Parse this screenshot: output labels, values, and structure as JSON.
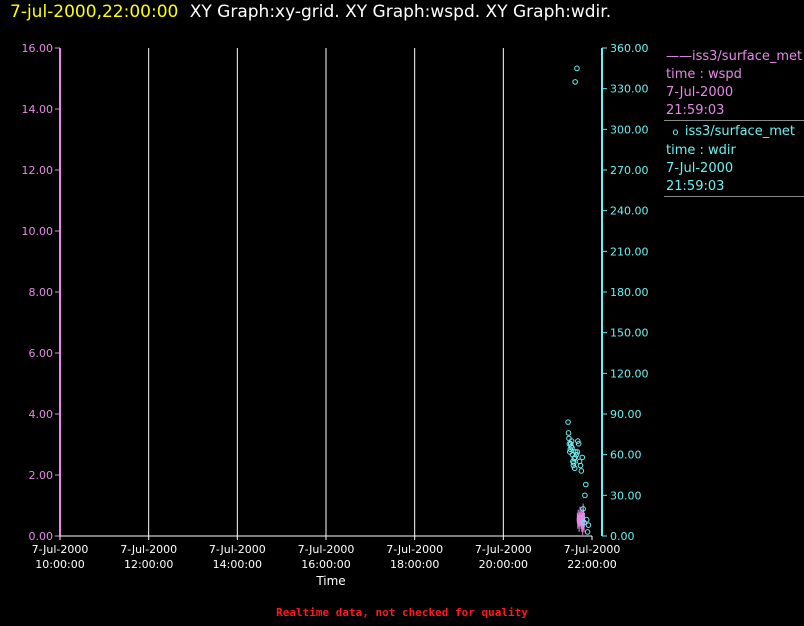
{
  "title": {
    "timestamp": "7-jul-2000,22:00:00",
    "graphs": "XY Graph:xy-grid.  XY Graph:wspd.  XY Graph:wdir."
  },
  "legend": [
    {
      "label": "iss3/surface_met",
      "var": "time : wspd",
      "date": "7-Jul-2000",
      "time": "21:59:03",
      "marker": "line"
    },
    {
      "label": "iss3/surface_met",
      "var": "time : wdir",
      "date": "7-Jul-2000",
      "time": "21:59:03",
      "marker": "circle"
    }
  ],
  "footer": "Realtime data, not checked for quality",
  "colors": {
    "wspd": "#e68ae6",
    "wdir": "#6cf0f0",
    "grid": "#ffffff",
    "timestamp": "#ffff00",
    "footer": "#ff1a1a"
  },
  "chart_data": {
    "type": "scatter",
    "xlabel": "Time",
    "x_ticks": [
      {
        "date": "7-Jul-2000",
        "time": "10:00:00",
        "hour": 10
      },
      {
        "date": "7-Jul-2000",
        "time": "12:00:00",
        "hour": 12
      },
      {
        "date": "7-Jul-2000",
        "time": "14:00:00",
        "hour": 14
      },
      {
        "date": "7-Jul-2000",
        "time": "16:00:00",
        "hour": 16
      },
      {
        "date": "7-Jul-2000",
        "time": "18:00:00",
        "hour": 18
      },
      {
        "date": "7-Jul-2000",
        "time": "20:00:00",
        "hour": 20
      },
      {
        "date": "7-Jul-2000",
        "time": "22:00:00",
        "hour": 22
      }
    ],
    "xlim_hours": [
      10,
      22
    ],
    "left_axis": {
      "ylim": [
        0,
        16
      ],
      "ticks": [
        "0.00",
        "2.00",
        "4.00",
        "6.00",
        "8.00",
        "10.00",
        "12.00",
        "14.00",
        "16.00"
      ],
      "tick_values": [
        0,
        2,
        4,
        6,
        8,
        10,
        12,
        14,
        16
      ]
    },
    "right_axis": {
      "ylim": [
        0,
        360
      ],
      "ticks": [
        "0.00",
        "30.00",
        "60.00",
        "90.00",
        "120.00",
        "150.00",
        "180.00",
        "210.00",
        "240.00",
        "270.00",
        "300.00",
        "330.00",
        "360.00"
      ],
      "tick_values": [
        0,
        30,
        60,
        90,
        120,
        150,
        180,
        210,
        240,
        270,
        300,
        330,
        360
      ]
    },
    "grid": "vertical",
    "series": [
      {
        "name": "time : wspd",
        "axis": "left",
        "style": "line",
        "points": [
          [
            21.67,
            0.6
          ],
          [
            21.68,
            0.4
          ],
          [
            21.69,
            0.7
          ],
          [
            21.7,
            0.5
          ],
          [
            21.71,
            0.3
          ],
          [
            21.72,
            0.6
          ],
          [
            21.73,
            0.8
          ],
          [
            21.74,
            0.5
          ],
          [
            21.75,
            0.4
          ],
          [
            21.76,
            0.7
          ],
          [
            21.77,
            0.3
          ],
          [
            21.78,
            0.6
          ],
          [
            21.79,
            0.2
          ],
          [
            21.8,
            0.9
          ],
          [
            21.81,
            0.5
          ],
          [
            21.82,
            0.3
          ],
          [
            21.83,
            0.6
          ]
        ]
      },
      {
        "name": "time : wdir",
        "axis": "right",
        "style": "circle",
        "points": [
          [
            21.62,
            335
          ],
          [
            21.66,
            345
          ],
          [
            21.46,
            84
          ],
          [
            21.47,
            76
          ],
          [
            21.48,
            72
          ],
          [
            21.49,
            68
          ],
          [
            21.5,
            62
          ],
          [
            21.51,
            64
          ],
          [
            21.52,
            68
          ],
          [
            21.53,
            66
          ],
          [
            21.54,
            70
          ],
          [
            21.55,
            65
          ],
          [
            21.56,
            60
          ],
          [
            21.57,
            55
          ],
          [
            21.58,
            52
          ],
          [
            21.59,
            54
          ],
          [
            21.6,
            57
          ],
          [
            21.61,
            50
          ],
          [
            21.62,
            58
          ],
          [
            21.63,
            62
          ],
          [
            21.65,
            60
          ],
          [
            21.67,
            62
          ],
          [
            21.68,
            70
          ],
          [
            21.7,
            68
          ],
          [
            21.72,
            55
          ],
          [
            21.74,
            52
          ],
          [
            21.76,
            48
          ],
          [
            21.78,
            58
          ],
          [
            21.8,
            20
          ],
          [
            21.82,
            10
          ],
          [
            21.84,
            30
          ],
          [
            21.86,
            38
          ],
          [
            21.88,
            12
          ],
          [
            21.9,
            3
          ],
          [
            21.92,
            8
          ]
        ]
      }
    ]
  }
}
